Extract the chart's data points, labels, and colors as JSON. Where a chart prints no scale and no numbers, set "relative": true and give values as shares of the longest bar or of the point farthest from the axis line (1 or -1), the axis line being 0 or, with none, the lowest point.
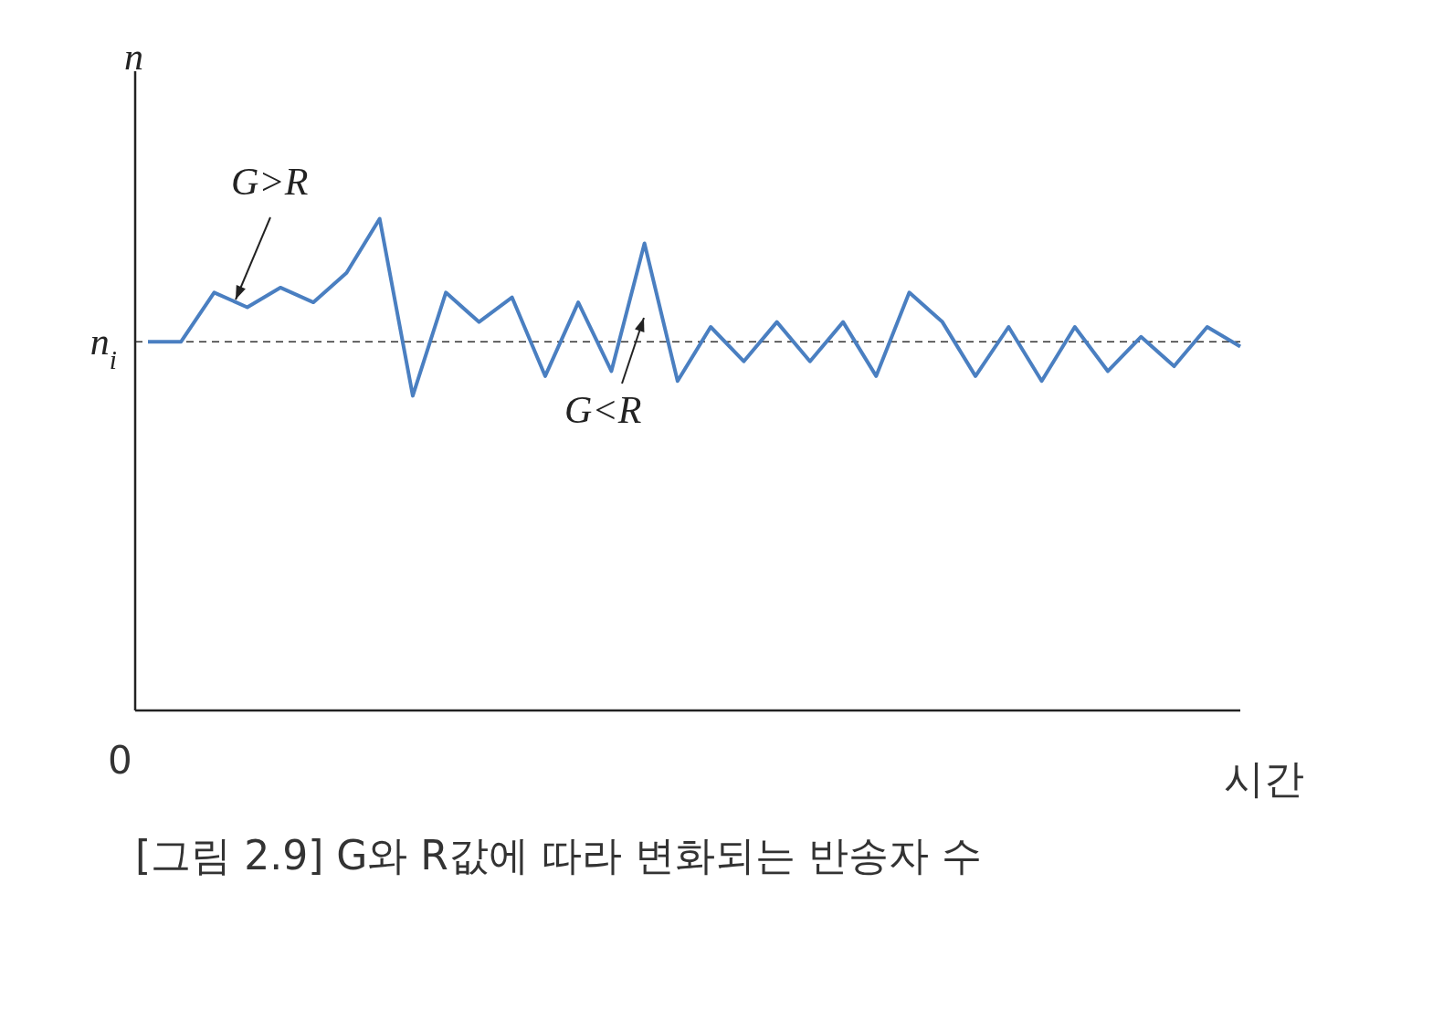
{
  "chart_data": {
    "type": "line",
    "relative": true,
    "ylabel": "n",
    "xlabel": "시간",
    "categories": [
      null,
      null,
      null,
      null,
      null,
      null,
      null,
      null,
      null,
      null,
      null,
      null,
      null,
      null,
      null,
      null,
      null,
      null,
      null,
      null,
      null,
      null,
      null,
      null,
      null,
      null,
      null,
      null,
      null,
      null,
      null,
      null,
      null,
      null
    ],
    "series": [
      {
        "color": "#4a7fc1",
        "values": [
          0.75,
          0.75,
          0.85,
          0.82,
          0.86,
          0.83,
          0.89,
          1.0,
          0.64,
          0.85,
          0.79,
          0.84,
          0.68,
          0.83,
          0.69,
          0.95,
          0.67,
          0.78,
          0.71,
          0.79,
          0.71,
          0.79,
          0.68,
          0.85,
          0.79,
          0.68,
          0.78,
          0.67,
          0.78,
          0.69,
          0.76,
          0.7,
          0.78,
          0.74
        ]
      }
    ],
    "ref_lines": [
      {
        "axis": "y",
        "value": 0.75,
        "label": "n$_{i}$",
        "line_style": "dashed",
        "color": "#333333"
      }
    ],
    "annotations": [
      "G>R",
      "G<R",
      "0",
      "[그림 2.9] G와 R값에 따라 변화되는 반송자 수"
    ],
    "grid": false,
    "legend": false,
    "marker": "none",
    "line_style": "solid"
  }
}
